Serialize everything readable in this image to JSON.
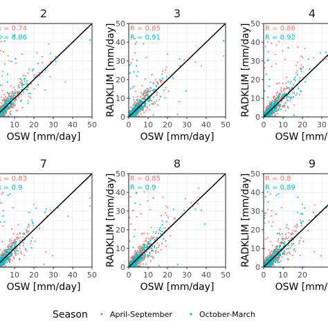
{
  "figure": {
    "background": "#ffffff",
    "grid": true,
    "identity_line": true
  },
  "colors": {
    "april_september": "#f8766d",
    "october_march": "#00bfc4",
    "line": "#000000",
    "grid": "#ebebeb"
  },
  "chart_data": [
    {
      "type": "scatter",
      "title": "2",
      "xlabel": "OSW [mm/day]",
      "ylabel": "",
      "xlim": [
        0,
        50
      ],
      "ylim": [
        0,
        50
      ],
      "xticks": [
        "0",
        "10",
        "20",
        "30",
        "40",
        "50"
      ],
      "yticks": [],
      "annotations": [
        {
          "text": "R = 0.74",
          "series": "April-September"
        },
        {
          "text": "R = 0.86",
          "series": "October-March"
        }
      ],
      "series": [
        {
          "name": "April-September"
        },
        {
          "name": "October-March"
        }
      ]
    },
    {
      "type": "scatter",
      "title": "3",
      "xlabel": "OSW [mm/day]",
      "ylabel": "RADKLIM [mm/day]",
      "xlim": [
        0,
        50
      ],
      "ylim": [
        0,
        50
      ],
      "xticks": [
        "0",
        "10",
        "20",
        "30",
        "40",
        "50"
      ],
      "yticks": [
        "0",
        "10",
        "20",
        "30",
        "40",
        "50"
      ],
      "annotations": [
        {
          "text": "R = 0.85",
          "series": "April-September"
        },
        {
          "text": "R = 0.91",
          "series": "October-March"
        }
      ],
      "series": [
        {
          "name": "April-September"
        },
        {
          "name": "October-March"
        }
      ]
    },
    {
      "type": "scatter",
      "title": "4",
      "xlabel": "OSW [mm/day]",
      "ylabel": "RADKLIM [mm/day]",
      "xlim": [
        0,
        50
      ],
      "ylim": [
        0,
        50
      ],
      "xticks": [
        "0",
        "10",
        "20",
        "30"
      ],
      "yticks": [
        "0",
        "10",
        "20",
        "30",
        "40",
        "50"
      ],
      "annotations": [
        {
          "text": "R = 0.86",
          "series": "April-September"
        },
        {
          "text": "R = 0.92",
          "series": "October-March"
        }
      ],
      "series": [
        {
          "name": "April-September"
        },
        {
          "name": "October-March"
        }
      ]
    },
    {
      "type": "scatter",
      "title": "7",
      "xlabel": "OSW [mm/day]",
      "ylabel": "",
      "xlim": [
        0,
        50
      ],
      "ylim": [
        0,
        50
      ],
      "xticks": [
        "0",
        "10",
        "20",
        "30",
        "40",
        "50"
      ],
      "yticks": [],
      "annotations": [
        {
          "text": "R = 0.83",
          "series": "April-September"
        },
        {
          "text": "R = 0.9",
          "series": "October-March"
        }
      ],
      "series": [
        {
          "name": "April-September"
        },
        {
          "name": "October-March"
        }
      ]
    },
    {
      "type": "scatter",
      "title": "8",
      "xlabel": "OSW [mm/day]",
      "ylabel": "RADKLIM [mm/day]",
      "xlim": [
        0,
        50
      ],
      "ylim": [
        0,
        50
      ],
      "xticks": [
        "0",
        "10",
        "20",
        "30",
        "40",
        "50"
      ],
      "yticks": [
        "0",
        "10",
        "20",
        "30",
        "40",
        "50"
      ],
      "annotations": [
        {
          "text": "R = 0.85",
          "series": "April-September"
        },
        {
          "text": "R = 0.9",
          "series": "October-March"
        }
      ],
      "series": [
        {
          "name": "April-September"
        },
        {
          "name": "October-March"
        }
      ]
    },
    {
      "type": "scatter",
      "title": "9",
      "xlabel": "OSW [mm/day]",
      "ylabel": "RADKLIM [mm/day]",
      "xlim": [
        0,
        50
      ],
      "ylim": [
        0,
        50
      ],
      "xticks": [
        "0",
        "10",
        "20"
      ],
      "yticks": [
        "0",
        "10",
        "20",
        "30",
        "40",
        "50"
      ],
      "annotations": [
        {
          "text": "R = 0.8",
          "series": "April-September"
        },
        {
          "text": "R = 0.89",
          "series": "October-March"
        }
      ],
      "series": [
        {
          "name": "April-September"
        },
        {
          "name": "October-March"
        }
      ]
    }
  ],
  "legend": {
    "title": "Season",
    "items": [
      "April-September",
      "October-March"
    ],
    "placement": "bottom"
  }
}
